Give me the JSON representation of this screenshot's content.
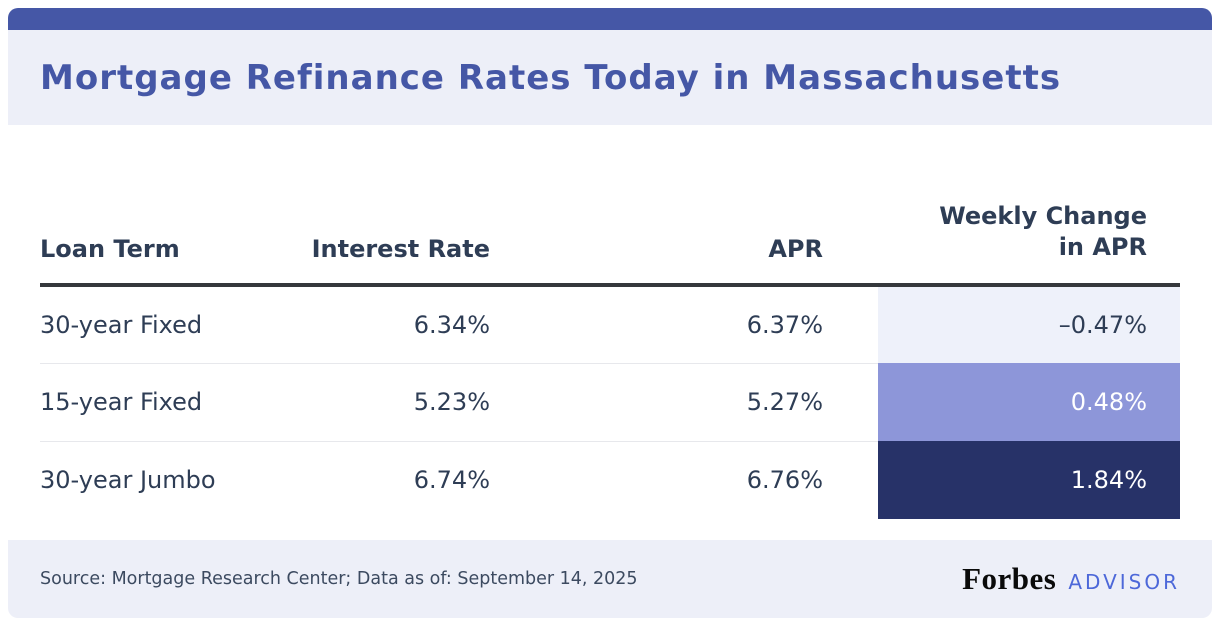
{
  "theme": {
    "accent": "#4557a6",
    "band_bg": "#edeff8",
    "text_dark": "#2e3d55",
    "header_rule": "#35383c",
    "row_divider": "#e7e8ec",
    "cell_light": "#eef1fa",
    "cell_medium": "#8d96d9",
    "cell_dark": "#273268",
    "advisor_blue": "#4d68d9"
  },
  "header": {
    "title": "Mortgage Refinance Rates Today in Massachusetts"
  },
  "table": {
    "columns": {
      "loan_term": "Loan Term",
      "interest_rate": "Interest Rate",
      "apr": "APR",
      "weekly_change_line1": "Weekly Change",
      "weekly_change_line2": "in APR"
    },
    "rows": [
      {
        "term": "30-year Fixed",
        "interest_rate": "6.34%",
        "apr": "6.37%",
        "weekly_change": "–0.47%"
      },
      {
        "term": "15-year Fixed",
        "interest_rate": "5.23%",
        "apr": "5.27%",
        "weekly_change": "0.48%"
      },
      {
        "term": "30-year Jumbo",
        "interest_rate": "6.74%",
        "apr": "6.76%",
        "weekly_change": "1.84%"
      }
    ]
  },
  "footer": {
    "source": "Source: Mortgage Research Center; Data as of: September 14, 2025",
    "brand_forbes": "Forbes",
    "brand_advisor": "ADVISOR"
  },
  "chart_data": {
    "type": "table",
    "title": "Mortgage Refinance Rates Today in Massachusetts",
    "columns": [
      "Loan Term",
      "Interest Rate",
      "APR",
      "Weekly Change in APR"
    ],
    "rows": [
      [
        "30-year Fixed",
        "6.34%",
        "6.37%",
        "-0.47%"
      ],
      [
        "15-year Fixed",
        "5.23%",
        "5.27%",
        "0.48%"
      ],
      [
        "30-year Jumbo",
        "6.74%",
        "6.76%",
        "1.84%"
      ]
    ],
    "notes": "Weekly Change in APR cells are color-coded by magnitude: -0.47% light lavender with dark text, 0.48% medium periwinkle with white text, 1.84% dark navy with white text",
    "source": "Mortgage Research Center",
    "data_as_of": "September 14, 2025"
  }
}
